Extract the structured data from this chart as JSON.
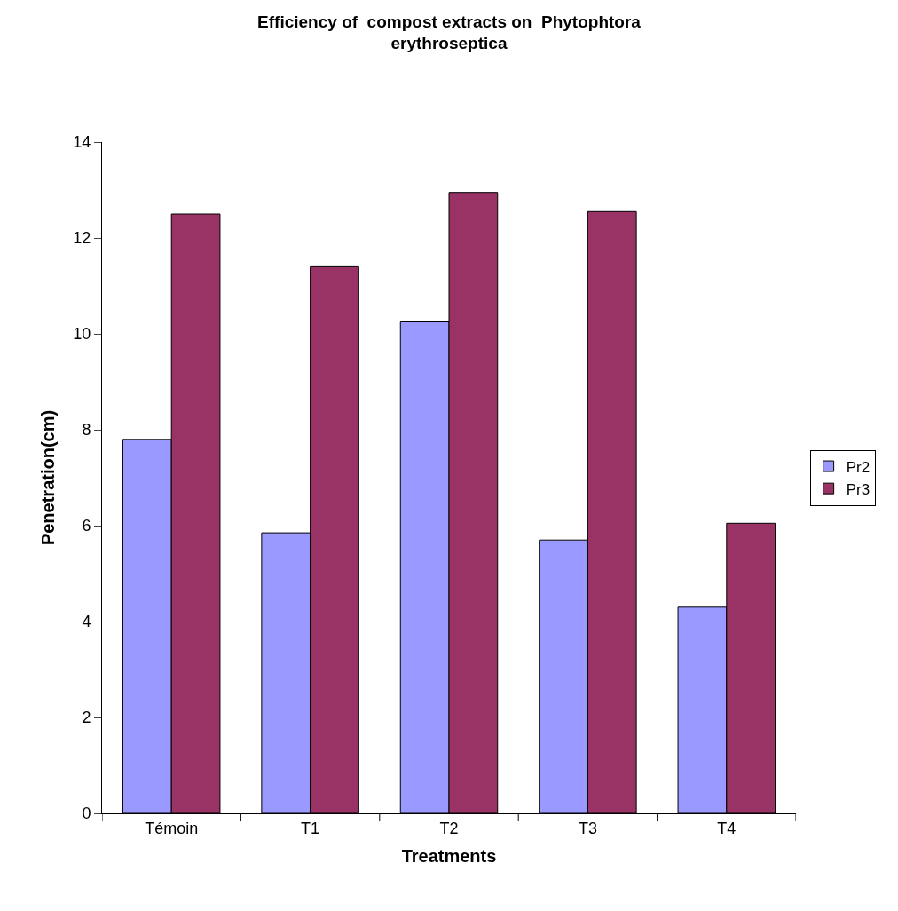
{
  "chart_data": {
    "type": "bar",
    "title": "Efficiency of  compost extracts on  Phytophtora erythroseptica",
    "xlabel": "Treatments",
    "ylabel": "Penetration(cm)",
    "categories": [
      "Témoin",
      "T1",
      "T2",
      "T3",
      "T4"
    ],
    "series": [
      {
        "name": "Pr2",
        "color": "#9999ff",
        "values": [
          7.8,
          5.85,
          10.25,
          5.7,
          4.3
        ]
      },
      {
        "name": "Pr3",
        "color": "#993366",
        "values": [
          12.5,
          11.4,
          12.95,
          12.55,
          6.05
        ]
      }
    ],
    "ylim": [
      0,
      14
    ],
    "yticks": [
      0,
      2,
      4,
      6,
      8,
      10,
      12,
      14
    ],
    "legend": "right"
  }
}
